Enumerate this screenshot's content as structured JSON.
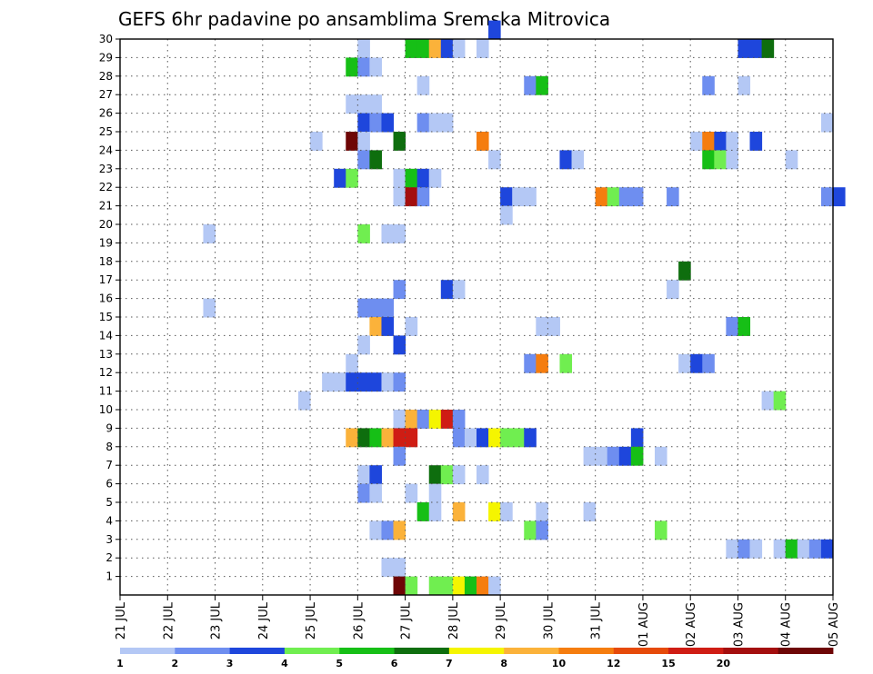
{
  "chart_data": {
    "type": "heatmap",
    "title": "GEFS 6hr padavine po ansamblima Sremska Mitrovica",
    "y_ticks": [
      "1",
      "2",
      "3",
      "4",
      "5",
      "6",
      "7",
      "8",
      "9",
      "10",
      "11",
      "12",
      "13",
      "14",
      "15",
      "16",
      "17",
      "18",
      "19",
      "20",
      "21",
      "22",
      "23",
      "24",
      "25",
      "26",
      "27",
      "28",
      "29",
      "30"
    ],
    "x_ticks": [
      "21 JUL",
      "22 JUL",
      "23 JUL",
      "24 JUL",
      "25 JUL",
      "26 JUL",
      "27 JUL",
      "28 JUL",
      "29 JUL",
      "30 JUL",
      "31 JUL",
      "01 AUG",
      "02 AUG",
      "03 AUG",
      "04 AUG",
      "05 AUG"
    ],
    "grid": true,
    "x_range": [
      "21 JUL 00Z",
      "05 AUG 00Z"
    ],
    "x_step": "6hr",
    "color_levels": [
      {
        "label": "1",
        "color": "#b4c8f5"
      },
      {
        "label": "2",
        "color": "#6e8ef0"
      },
      {
        "label": "3",
        "color": "#1e46dc"
      },
      {
        "label": "4",
        "color": "#70ee50"
      },
      {
        "label": "5",
        "color": "#16bf16"
      },
      {
        "label": "6",
        "color": "#0e6e0e"
      },
      {
        "label": "7",
        "color": "#f5f500"
      },
      {
        "label": "8",
        "color": "#fbb23a"
      },
      {
        "label": "10",
        "color": "#f57d0f"
      },
      {
        "label": "12",
        "color": "#e64a0a"
      },
      {
        "label": "15",
        "color": "#cf1d14"
      },
      {
        "label": "20",
        "color": "#a40e0e"
      },
      {
        "label": "",
        "color": "#6e0606"
      }
    ],
    "cells": [
      [
        30,
        "28 JUL 18Z",
        2
      ],
      [
        29,
        "26 JUL 00Z",
        0
      ],
      [
        29,
        "27 JUL 00Z",
        4
      ],
      [
        29,
        "27 JUL 06Z",
        4
      ],
      [
        29,
        "27 JUL 12Z",
        7
      ],
      [
        29,
        "27 JUL 18Z",
        2
      ],
      [
        29,
        "28 JUL 00Z",
        0
      ],
      [
        29,
        "28 JUL 12Z",
        0
      ],
      [
        29,
        "03 AUG 00Z",
        2
      ],
      [
        29,
        "03 AUG 06Z",
        2
      ],
      [
        29,
        "03 AUG 12Z",
        5
      ],
      [
        28,
        "25 JUL 18Z",
        4
      ],
      [
        28,
        "26 JUL 00Z",
        1
      ],
      [
        28,
        "26 JUL 06Z",
        0
      ],
      [
        27,
        "27 JUL 06Z",
        0
      ],
      [
        27,
        "29 JUL 12Z",
        1
      ],
      [
        27,
        "29 JUL 18Z",
        4
      ],
      [
        27,
        "02 AUG 06Z",
        1
      ],
      [
        27,
        "03 AUG 00Z",
        0
      ],
      [
        26,
        "25 JUL 18Z",
        0
      ],
      [
        26,
        "26 JUL 00Z",
        0
      ],
      [
        26,
        "26 JUL 06Z",
        0
      ],
      [
        25,
        "26 JUL 00Z",
        2
      ],
      [
        25,
        "26 JUL 06Z",
        1
      ],
      [
        25,
        "26 JUL 12Z",
        2
      ],
      [
        25,
        "27 JUL 06Z",
        1
      ],
      [
        25,
        "27 JUL 12Z",
        0
      ],
      [
        25,
        "27 JUL 18Z",
        0
      ],
      [
        25,
        "04 AUG 18Z",
        0
      ],
      [
        24,
        "25 JUL 00Z",
        0
      ],
      [
        24,
        "25 JUL 18Z",
        12
      ],
      [
        24,
        "26 JUL 00Z",
        0
      ],
      [
        24,
        "26 JUL 18Z",
        5
      ],
      [
        24,
        "28 JUL 12Z",
        8
      ],
      [
        24,
        "02 AUG 00Z",
        0
      ],
      [
        24,
        "02 AUG 06Z",
        8
      ],
      [
        24,
        "02 AUG 12Z",
        2
      ],
      [
        24,
        "02 AUG 18Z",
        0
      ],
      [
        24,
        "03 AUG 06Z",
        2
      ],
      [
        23,
        "26 JUL 00Z",
        1
      ],
      [
        23,
        "26 JUL 06Z",
        5
      ],
      [
        23,
        "28 JUL 18Z",
        0
      ],
      [
        23,
        "30 JUL 06Z",
        2
      ],
      [
        23,
        "30 JUL 12Z",
        0
      ],
      [
        23,
        "02 AUG 06Z",
        4
      ],
      [
        23,
        "02 AUG 12Z",
        3
      ],
      [
        23,
        "02 AUG 18Z",
        0
      ],
      [
        23,
        "04 AUG 00Z",
        0
      ],
      [
        22,
        "25 JUL 12Z",
        2
      ],
      [
        22,
        "25 JUL 18Z",
        3
      ],
      [
        22,
        "26 JUL 18Z",
        0
      ],
      [
        22,
        "27 JUL 00Z",
        4
      ],
      [
        22,
        "27 JUL 06Z",
        2
      ],
      [
        22,
        "27 JUL 12Z",
        0
      ],
      [
        21,
        "26 JUL 18Z",
        0
      ],
      [
        21,
        "27 JUL 00Z",
        11
      ],
      [
        21,
        "27 JUL 06Z",
        1
      ],
      [
        21,
        "29 JUL 00Z",
        2
      ],
      [
        21,
        "29 JUL 06Z",
        0
      ],
      [
        21,
        "29 JUL 12Z",
        0
      ],
      [
        21,
        "31 JUL 00Z",
        8
      ],
      [
        21,
        "31 JUL 06Z",
        3
      ],
      [
        21,
        "31 JUL 12Z",
        1
      ],
      [
        21,
        "31 JUL 18Z",
        1
      ],
      [
        21,
        "01 AUG 12Z",
        1
      ],
      [
        21,
        "04 AUG 18Z",
        1
      ],
      [
        21,
        "05 AUG 00Z",
        2
      ],
      [
        20,
        "29 JUL 00Z",
        0
      ],
      [
        19,
        "22 JUL 18Z",
        0
      ],
      [
        19,
        "26 JUL 00Z",
        3
      ],
      [
        19,
        "26 JUL 12Z",
        0
      ],
      [
        19,
        "26 JUL 18Z",
        0
      ],
      [
        17,
        "01 AUG 18Z",
        5
      ],
      [
        16,
        "26 JUL 18Z",
        1
      ],
      [
        16,
        "27 JUL 18Z",
        2
      ],
      [
        16,
        "28 JUL 00Z",
        0
      ],
      [
        16,
        "01 AUG 12Z",
        0
      ],
      [
        15,
        "22 JUL 18Z",
        0
      ],
      [
        15,
        "26 JUL 00Z",
        1
      ],
      [
        15,
        "26 JUL 06Z",
        1
      ],
      [
        15,
        "26 JUL 12Z",
        1
      ],
      [
        14,
        "26 JUL 06Z",
        7
      ],
      [
        14,
        "26 JUL 12Z",
        2
      ],
      [
        14,
        "27 JUL 00Z",
        0
      ],
      [
        14,
        "29 JUL 18Z",
        0
      ],
      [
        14,
        "30 JUL 00Z",
        0
      ],
      [
        14,
        "02 AUG 18Z",
        1
      ],
      [
        14,
        "03 AUG 00Z",
        4
      ],
      [
        13,
        "26 JUL 00Z",
        0
      ],
      [
        13,
        "26 JUL 18Z",
        2
      ],
      [
        12,
        "25 JUL 18Z",
        0
      ],
      [
        12,
        "29 JUL 12Z",
        1
      ],
      [
        12,
        "29 JUL 18Z",
        8
      ],
      [
        12,
        "30 JUL 06Z",
        3
      ],
      [
        12,
        "01 AUG 18Z",
        0
      ],
      [
        12,
        "02 AUG 00Z",
        2
      ],
      [
        12,
        "02 AUG 06Z",
        1
      ],
      [
        11,
        "25 JUL 06Z",
        0
      ],
      [
        11,
        "25 JUL 12Z",
        0
      ],
      [
        11,
        "25 JUL 18Z",
        2
      ],
      [
        11,
        "26 JUL 00Z",
        2
      ],
      [
        11,
        "26 JUL 06Z",
        2
      ],
      [
        11,
        "26 JUL 12Z",
        0
      ],
      [
        11,
        "26 JUL 18Z",
        1
      ],
      [
        10,
        "24 JUL 18Z",
        0
      ],
      [
        10,
        "03 AUG 12Z",
        0
      ],
      [
        10,
        "03 AUG 18Z",
        3
      ],
      [
        9,
        "26 JUL 18Z",
        0
      ],
      [
        9,
        "27 JUL 00Z",
        7
      ],
      [
        9,
        "27 JUL 06Z",
        1
      ],
      [
        9,
        "27 JUL 12Z",
        6
      ],
      [
        9,
        "27 JUL 18Z",
        10
      ],
      [
        9,
        "28 JUL 00Z",
        1
      ],
      [
        8,
        "25 JUL 18Z",
        7
      ],
      [
        8,
        "26 JUL 00Z",
        5
      ],
      [
        8,
        "26 JUL 06Z",
        4
      ],
      [
        8,
        "26 JUL 12Z",
        7
      ],
      [
        8,
        "26 JUL 18Z",
        10
      ],
      [
        8,
        "27 JUL 00Z",
        10
      ],
      [
        8,
        "28 JUL 00Z",
        1
      ],
      [
        8,
        "28 JUL 06Z",
        0
      ],
      [
        8,
        "28 JUL 12Z",
        2
      ],
      [
        8,
        "28 JUL 18Z",
        6
      ],
      [
        8,
        "29 JUL 00Z",
        3
      ],
      [
        8,
        "29 JUL 06Z",
        3
      ],
      [
        8,
        "29 JUL 12Z",
        2
      ],
      [
        8,
        "31 JUL 18Z",
        2
      ],
      [
        7,
        "26 JUL 18Z",
        1
      ],
      [
        7,
        "30 JUL 18Z",
        0
      ],
      [
        7,
        "31 JUL 00Z",
        0
      ],
      [
        7,
        "31 JUL 06Z",
        1
      ],
      [
        7,
        "31 JUL 12Z",
        2
      ],
      [
        7,
        "31 JUL 18Z",
        4
      ],
      [
        7,
        "01 AUG 06Z",
        0
      ],
      [
        6,
        "26 JUL 00Z",
        0
      ],
      [
        6,
        "26 JUL 06Z",
        2
      ],
      [
        6,
        "27 JUL 12Z",
        5
      ],
      [
        6,
        "27 JUL 18Z",
        3
      ],
      [
        6,
        "28 JUL 00Z",
        0
      ],
      [
        6,
        "28 JUL 12Z",
        0
      ],
      [
        5,
        "26 JUL 00Z",
        1
      ],
      [
        5,
        "26 JUL 06Z",
        0
      ],
      [
        5,
        "27 JUL 00Z",
        0
      ],
      [
        5,
        "27 JUL 12Z",
        0
      ],
      [
        4,
        "27 JUL 06Z",
        4
      ],
      [
        4,
        "27 JUL 12Z",
        0
      ],
      [
        4,
        "28 JUL 00Z",
        7
      ],
      [
        4,
        "28 JUL 18Z",
        6
      ],
      [
        4,
        "29 JUL 00Z",
        0
      ],
      [
        4,
        "29 JUL 18Z",
        0
      ],
      [
        4,
        "30 JUL 18Z",
        0
      ],
      [
        3,
        "26 JUL 06Z",
        0
      ],
      [
        3,
        "26 JUL 12Z",
        1
      ],
      [
        3,
        "26 JUL 18Z",
        7
      ],
      [
        3,
        "29 JUL 12Z",
        3
      ],
      [
        3,
        "29 JUL 18Z",
        1
      ],
      [
        3,
        "01 AUG 06Z",
        3
      ],
      [
        2,
        "02 AUG 18Z",
        0
      ],
      [
        2,
        "03 AUG 00Z",
        1
      ],
      [
        2,
        "03 AUG 06Z",
        0
      ],
      [
        2,
        "03 AUG 18Z",
        0
      ],
      [
        2,
        "04 AUG 00Z",
        4
      ],
      [
        2,
        "04 AUG 06Z",
        0
      ],
      [
        2,
        "04 AUG 12Z",
        1
      ],
      [
        2,
        "04 AUG 18Z",
        2
      ],
      [
        1,
        "26 JUL 12Z",
        0
      ],
      [
        1,
        "26 JUL 18Z",
        0
      ],
      [
        0,
        "26 JUL 18Z",
        12
      ],
      [
        0,
        "27 JUL 00Z",
        3
      ],
      [
        0,
        "27 JUL 12Z",
        3
      ],
      [
        0,
        "27 JUL 18Z",
        3
      ],
      [
        0,
        "28 JUL 00Z",
        6
      ],
      [
        0,
        "28 JUL 06Z",
        4
      ],
      [
        0,
        "28 JUL 12Z",
        8
      ],
      [
        0,
        "28 JUL 18Z",
        0
      ]
    ]
  }
}
